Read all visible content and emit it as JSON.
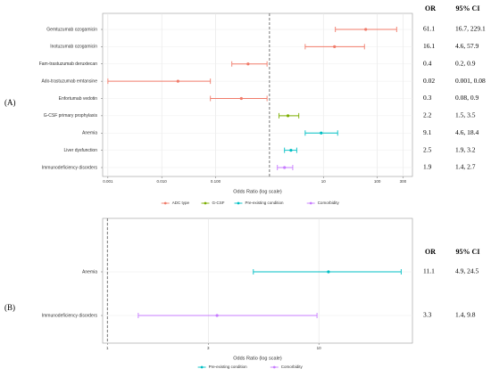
{
  "chart_data": [
    {
      "type": "forest",
      "panel_label": "(A)",
      "xlabel": "Odds Ratio (log scale)",
      "log_x": true,
      "grid": true,
      "reference": 1,
      "table_headers": [
        "OR",
        "95% CI"
      ],
      "xlim": [
        0.0008,
        450
      ],
      "xticks": [
        0.001,
        {
          "value": 0.01,
          "label": "0.010"
        },
        {
          "value": 0.1,
          "label": "0.100"
        },
        10,
        100,
        300
      ],
      "series": [
        {
          "name": "ADC type",
          "color": "#f07b6a",
          "categories": [
            "Gemtuzumab ozogamicin",
            "Inotuzumab ozogamicin",
            "Fam-trastuzumab deruxtecan",
            "Ado-trastuzumab emtansine",
            "Enfortumab vedotin"
          ],
          "values": [
            61.1,
            16.1,
            0.4,
            0.02,
            0.3
          ],
          "ci_low": [
            16.7,
            4.6,
            0.2,
            0.001,
            0.08
          ],
          "ci_high": [
            229.1,
            57.9,
            0.9,
            0.08,
            0.9
          ],
          "ci_labels": [
            "16.7, 229.1",
            "4.6, 57.9",
            "0.2, 0.9",
            "0.001, 0.08",
            "0.08, 0.9"
          ]
        },
        {
          "name": "G-CSF",
          "color": "#7cae00",
          "categories": [
            "G-CSF primary prophylaxis"
          ],
          "values": [
            2.2
          ],
          "ci_low": [
            1.5
          ],
          "ci_high": [
            3.5
          ],
          "ci_labels": [
            "1.5, 3.5"
          ]
        },
        {
          "name": "Pre-existing condition",
          "color": "#00bfc4",
          "categories": [
            "Anemia",
            "Liver dysfunction"
          ],
          "values": [
            9.1,
            2.5
          ],
          "ci_low": [
            4.6,
            1.9
          ],
          "ci_high": [
            18.4,
            3.2
          ],
          "ci_labels": [
            "4.6, 18.4",
            "1.9, 3.2"
          ]
        },
        {
          "name": "Comorbidity",
          "color": "#c77cff",
          "categories": [
            "Immunodeficiency disorders"
          ],
          "values": [
            1.9
          ],
          "ci_low": [
            1.4
          ],
          "ci_high": [
            2.7
          ],
          "ci_labels": [
            "1.4, 2.7"
          ]
        }
      ]
    },
    {
      "type": "forest",
      "panel_label": "(B)",
      "xlabel": "Odds Ratio (log scale)",
      "log_x": true,
      "grid": true,
      "reference": 1,
      "table_headers": [
        "OR",
        "95% CI"
      ],
      "xlim": [
        0.95,
        27.7
      ],
      "xticks": [
        1,
        3,
        10
      ],
      "series": [
        {
          "name": "Pre-existing condition",
          "color": "#00bfc4",
          "categories": [
            "Anemia"
          ],
          "values": [
            11.1
          ],
          "ci_low": [
            4.9
          ],
          "ci_high": [
            24.5
          ],
          "ci_labels": [
            "4.9, 24.5"
          ]
        },
        {
          "name": "Comorbidity",
          "color": "#c77cff",
          "categories": [
            "Immunodeficiency disorders"
          ],
          "values": [
            3.3
          ],
          "ci_low": [
            1.4
          ],
          "ci_high": [
            9.8
          ],
          "ci_labels": [
            "1.4, 9.8"
          ]
        }
      ]
    }
  ]
}
